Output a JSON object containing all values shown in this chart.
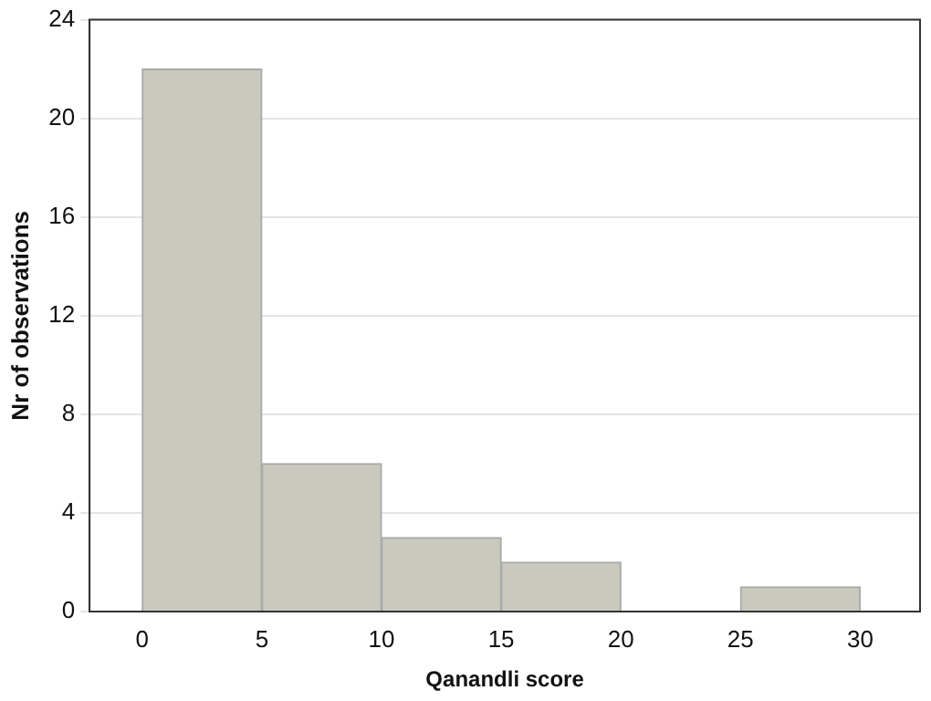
{
  "chart_data": {
    "type": "histogram",
    "xlabel": "Qanandli score",
    "ylabel": "Nr of observations",
    "bins": [
      0,
      5,
      10,
      15,
      20,
      25,
      30
    ],
    "values": [
      22,
      6,
      3,
      2,
      0,
      1
    ],
    "color": "#c9c9be",
    "xlim": [
      -2.2,
      32.5
    ],
    "xticks": [
      0,
      5,
      10,
      15,
      20,
      25,
      30
    ],
    "ylim": [
      0,
      24
    ],
    "yticks": [
      0,
      4,
      8,
      12,
      16,
      20,
      24
    ],
    "grid": "y"
  }
}
